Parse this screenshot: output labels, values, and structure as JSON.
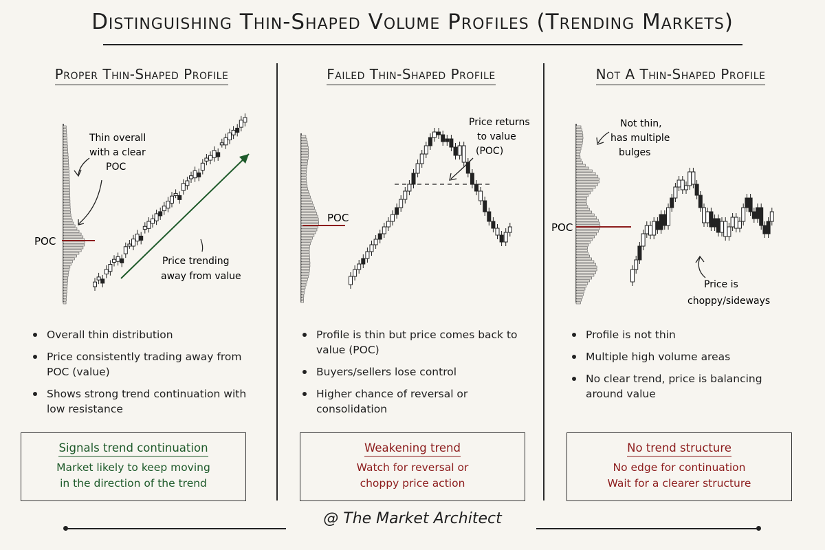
{
  "title": "Distinguishing Thin-Shaped Volume Profiles (Trending Markets)",
  "footer": "@ The Market Architect",
  "colors": {
    "green": "#1e5a2a",
    "red": "#8c1c1c",
    "ink": "#1f1f1f",
    "paper": "#f7f5f0"
  },
  "columns": [
    {
      "heading": "Proper Thin-Shaped Profile",
      "poc_label": "POC",
      "annotations": [
        "Thin overall",
        "with a clear",
        "POC",
        "Price trending",
        "away from value"
      ],
      "bullets": [
        "Overall thin distribution",
        "Price consistently trading away from POC (value)",
        "Shows strong trend continuation with low resistance"
      ],
      "box": {
        "heading": "Signals trend continuation",
        "line1": "Market likely to keep moving",
        "line2": "in the direction of the trend"
      }
    },
    {
      "heading": "Failed Thin-Shaped Profile",
      "poc_label": "POC",
      "annotations": [
        "Price returns",
        "to value",
        "(POC)"
      ],
      "bullets": [
        "Profile is thin but price comes back to value (POC)",
        "Buyers/sellers lose control",
        "Higher chance of reversal or consolidation"
      ],
      "box": {
        "heading": "Weakening trend",
        "line1": "Watch for reversal or",
        "line2": "choppy price action"
      }
    },
    {
      "heading": "Not A Thin-Shaped Profile",
      "poc_label": "POC",
      "annotations": [
        "Not thin,",
        "has multiple",
        "bulges",
        "Price is",
        "choppy/sideways"
      ],
      "bullets": [
        "Profile is not thin",
        "Multiple high volume areas",
        "No clear trend, price is balancing around value"
      ],
      "box": {
        "heading": "No trend structure",
        "line1": "No edge for continuation",
        "line2": "Wait for a clearer structure"
      }
    }
  ]
}
